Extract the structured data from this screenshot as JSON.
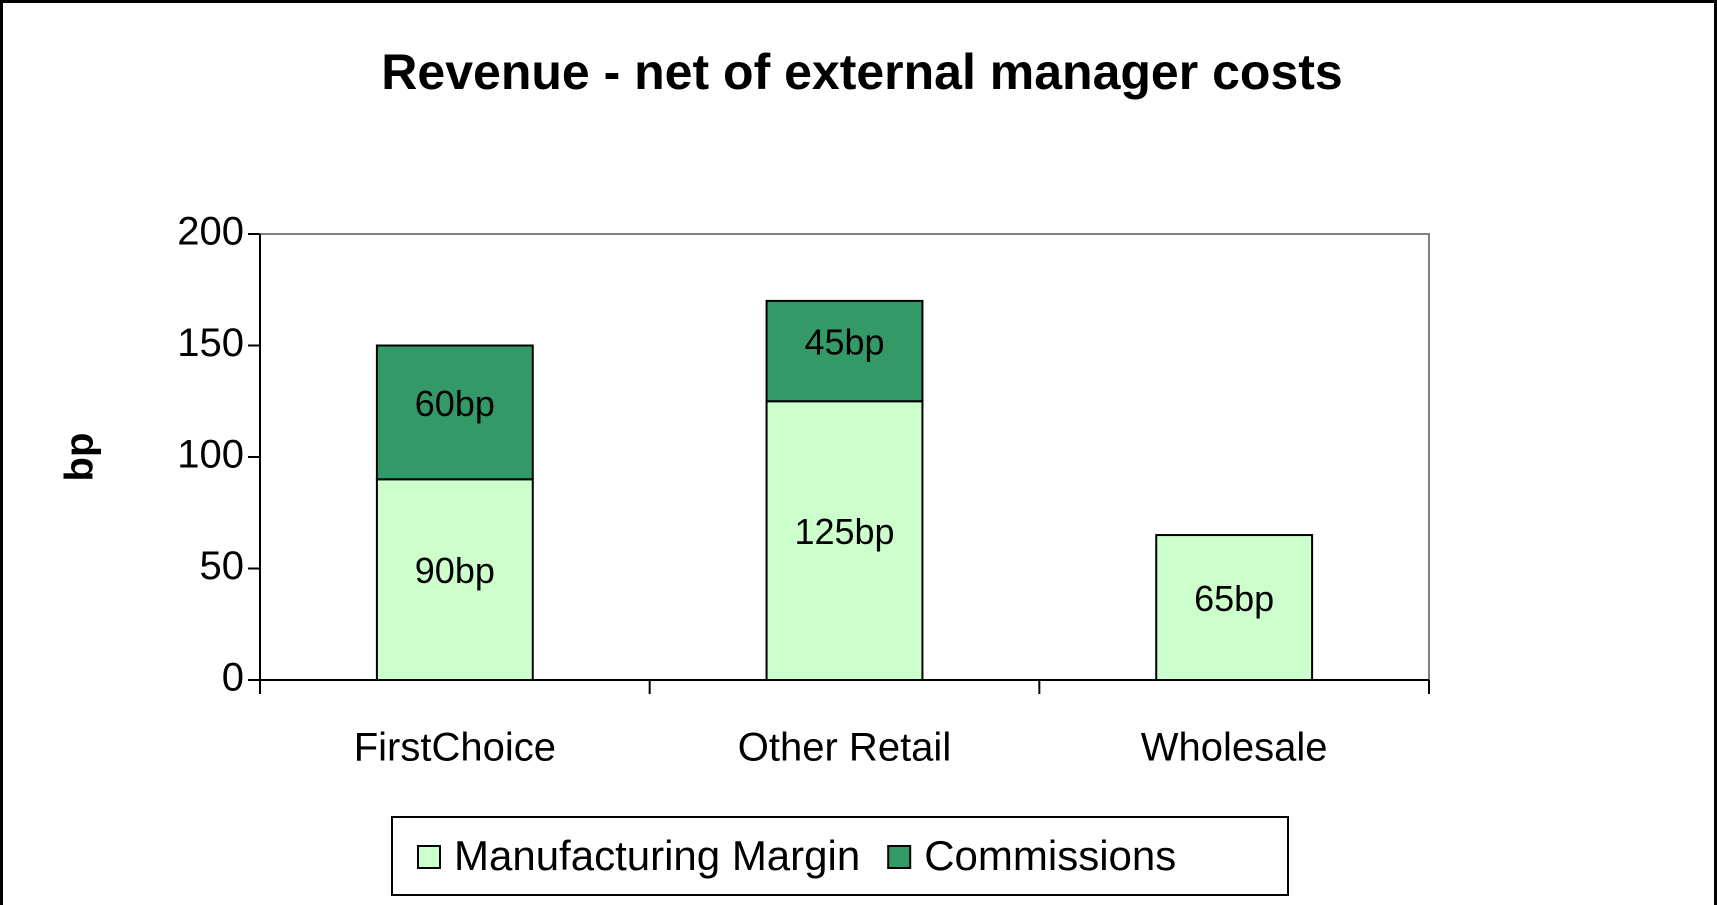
{
  "chart_data": {
    "type": "stacked_bar",
    "title": "Revenue - net of external manager costs",
    "y_label": "bp",
    "categories": [
      "FirstChoice",
      "Other Retail",
      "Wholesale"
    ],
    "series": [
      {
        "name": "Manufacturing Margin",
        "color": "#ccffcc",
        "values": [
          90,
          125,
          65
        ],
        "value_labels": [
          "90bp",
          "125bp",
          "65bp"
        ]
      },
      {
        "name": "Commissions",
        "color": "#339966",
        "values": [
          60,
          45,
          null
        ],
        "value_labels": [
          "60bp",
          "45bp",
          null
        ]
      }
    ],
    "ylim": [
      0,
      200
    ],
    "yticks": [
      0,
      50,
      100,
      150,
      200
    ],
    "grid": false,
    "legend": "bottom"
  }
}
